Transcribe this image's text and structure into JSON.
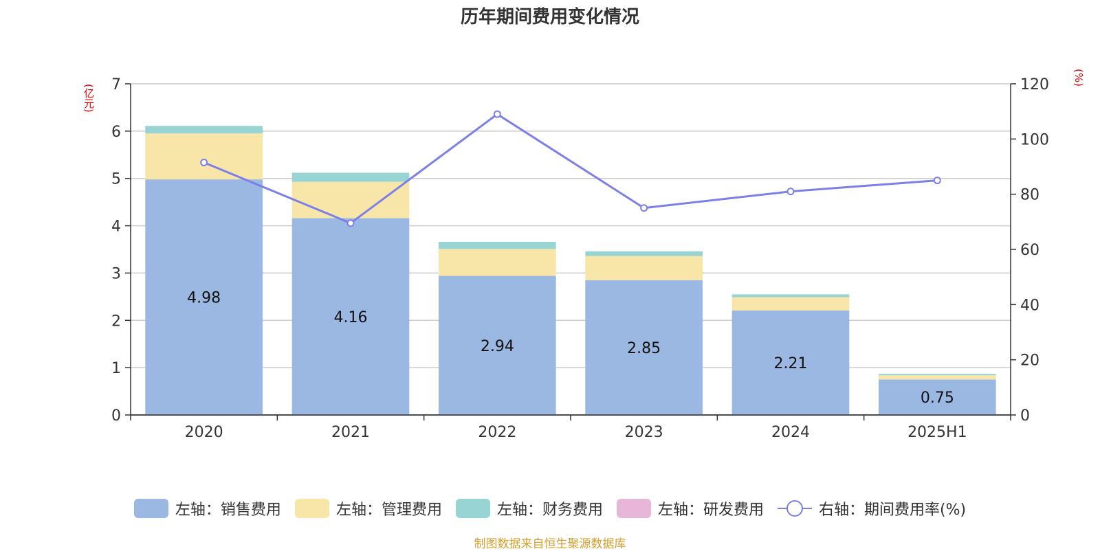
{
  "chart_data": {
    "type": "bar",
    "stacked": true,
    "title": "历年期间费用变化情况",
    "categories": [
      "2020",
      "2021",
      "2022",
      "2023",
      "2024",
      "2025H1"
    ],
    "left_axis": {
      "unit": "(亿元)",
      "min": 0,
      "max": 7,
      "ticks": [
        0,
        1,
        2,
        3,
        4,
        5,
        6,
        7
      ]
    },
    "right_axis": {
      "unit": "(%)",
      "min": 0,
      "max": 120,
      "ticks": [
        0,
        20,
        40,
        60,
        80,
        100,
        120
      ]
    },
    "series": [
      {
        "name": "左轴：销售费用",
        "type": "bar",
        "axis": "left",
        "color": "#9bb8e2",
        "values": [
          4.98,
          4.16,
          2.94,
          2.85,
          2.21,
          0.75
        ],
        "labels": [
          "4.98",
          "4.16",
          "2.94",
          "2.85",
          "2.21",
          "0.75"
        ]
      },
      {
        "name": "左轴：管理费用",
        "type": "bar",
        "axis": "left",
        "color": "#f8e6a8",
        "values": [
          0.97,
          0.77,
          0.57,
          0.51,
          0.28,
          0.09
        ]
      },
      {
        "name": "左轴：财务费用",
        "type": "bar",
        "axis": "left",
        "color": "#98d4d4",
        "values": [
          0.16,
          0.19,
          0.15,
          0.1,
          0.06,
          0.03
        ]
      },
      {
        "name": "左轴：研发费用",
        "type": "bar",
        "axis": "left",
        "color": "#e8b6d8",
        "values": [
          0,
          0,
          0,
          0,
          0,
          0
        ]
      },
      {
        "name": "右轴：期间费用率(%)",
        "type": "line",
        "axis": "right",
        "color": "#7b7fe8",
        "values": [
          91.5,
          69.5,
          109,
          75,
          81,
          85
        ]
      }
    ]
  },
  "source": "制图数据来自恒生聚源数据库"
}
